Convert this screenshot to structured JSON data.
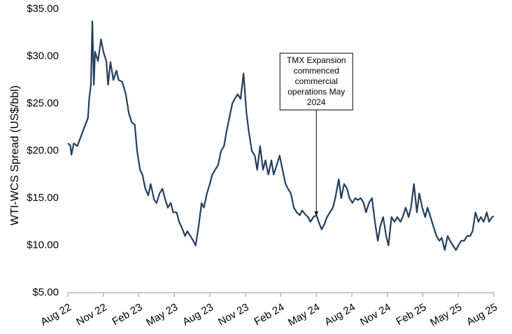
{
  "chart_data": {
    "type": "line",
    "y_label": "WTI-WCS Spread (US$/bbl)",
    "color": "#243f5e",
    "x": [
      0,
      0.2,
      0.3,
      0.5,
      0.8,
      1.1,
      1.4,
      1.7,
      1.8,
      1.95,
      2.07,
      2.2,
      2.3,
      2.55,
      2.8,
      3.0,
      3.25,
      3.4,
      3.6,
      3.85,
      4.1,
      4.3,
      4.6,
      4.9,
      5.15,
      5.4,
      5.65,
      5.85,
      6.1,
      6.3,
      6.55,
      6.8,
      7.0,
      7.3,
      7.5,
      7.75,
      8.0,
      8.2,
      8.45,
      8.7,
      8.9,
      9.2,
      9.4,
      9.6,
      9.9,
      10.1,
      10.35,
      10.6,
      10.8,
      11.05,
      11.3,
      11.5,
      11.75,
      12.0,
      12.2,
      12.45,
      12.7,
      12.95,
      13.2,
      13.4,
      13.65,
      13.9,
      14.1,
      14.35,
      14.6,
      14.85,
      15.1,
      15.3,
      15.55,
      15.8,
      16.0,
      16.25,
      16.5,
      16.7,
      16.95,
      17.2,
      17.4,
      17.65,
      17.9,
      18.15,
      18.4,
      18.6,
      18.85,
      19.1,
      19.35,
      19.6,
      19.8,
      20.05,
      20.3,
      20.5,
      20.75,
      21.0,
      21.2,
      21.45,
      21.7,
      21.9,
      22.15,
      22.4,
      22.6,
      22.9,
      23.1,
      23.35,
      23.6,
      23.8,
      24.05,
      24.3,
      24.5,
      24.75,
      25.0,
      25.2,
      25.45,
      25.7,
      25.95,
      26.2,
      26.4,
      26.65,
      26.9,
      27.1,
      27.35,
      27.6,
      27.85,
      28.1,
      28.3,
      28.55,
      28.8,
      29.0,
      29.25,
      29.5,
      29.7,
      29.95,
      30.2,
      30.4,
      30.65,
      30.9,
      31.15,
      31.4,
      31.6,
      31.85,
      32.1,
      32.3,
      32.55,
      32.8,
      33.0,
      33.25,
      33.5,
      33.75,
      34.0,
      34.2,
      34.45,
      34.7,
      34.9,
      35.15,
      35.4,
      35.6,
      35.85,
      36.0
    ],
    "values": [
      20.8,
      20.6,
      19.6,
      20.8,
      20.5,
      21.5,
      22.5,
      23.5,
      25.5,
      27,
      33.7,
      27,
      30.5,
      29.5,
      31.8,
      30.5,
      29.5,
      27,
      29.4,
      27.5,
      28.5,
      27.5,
      27.3,
      26,
      24,
      23,
      22.8,
      20,
      18,
      17.5,
      16,
      15.3,
      16.5,
      14.8,
      14.5,
      15.5,
      16,
      15,
      14,
      14.5,
      13.5,
      13.5,
      12.5,
      12,
      11,
      11.5,
      11,
      10.5,
      10,
      12,
      14.5,
      14,
      15.5,
      16.5,
      17.5,
      18,
      18.5,
      20,
      20.5,
      22,
      23.5,
      25,
      25.5,
      26,
      25.5,
      28.2,
      24,
      22,
      20,
      19.5,
      18,
      20.5,
      18,
      19,
      17.5,
      19,
      17.5,
      18.5,
      19.5,
      18,
      16.5,
      16,
      15.5,
      14,
      13.5,
      13.2,
      13.7,
      13.3,
      13,
      12.5,
      13,
      13.2,
      12.5,
      11.7,
      12.3,
      13,
      13.5,
      14,
      15,
      17,
      15,
      16.5,
      16,
      15,
      14.5,
      15,
      14.8,
      15,
      14.5,
      13.5,
      14.5,
      15,
      12.5,
      10.5,
      12,
      13,
      11,
      10,
      13,
      12.5,
      13,
      12.5,
      13,
      14,
      13,
      14,
      16.5,
      13.5,
      15.5,
      14,
      13,
      14,
      13,
      12,
      11,
      10.5,
      10.8,
      9.5,
      11,
      10.5,
      10,
      9.5,
      10,
      10.5,
      10.5,
      11,
      11,
      11.5,
      13.5,
      12.5,
      13,
      12.5,
      13.5,
      12.5,
      13,
      13.1
    ],
    "xlim": [
      0,
      36
    ],
    "xticks": [
      {
        "value": 0,
        "label": "Aug 22"
      },
      {
        "value": 3,
        "label": "Nov 22"
      },
      {
        "value": 6,
        "label": "Feb 23"
      },
      {
        "value": 9,
        "label": "May 23"
      },
      {
        "value": 12,
        "label": "Aug 23"
      },
      {
        "value": 15,
        "label": "Nov 23"
      },
      {
        "value": 18,
        "label": "Feb 24"
      },
      {
        "value": 21,
        "label": "May 24"
      },
      {
        "value": 24,
        "label": "Aug 24"
      },
      {
        "value": 27,
        "label": "Nov 24"
      },
      {
        "value": 30,
        "label": "Feb 25"
      },
      {
        "value": 33,
        "label": "May 25"
      },
      {
        "value": 36,
        "label": "Aug 25"
      }
    ],
    "ylim": [
      5,
      35
    ],
    "yticks": [
      {
        "value": 5,
        "label": "$5.00"
      },
      {
        "value": 10,
        "label": "$10.00"
      },
      {
        "value": 15,
        "label": "$15.00"
      },
      {
        "value": 20,
        "label": "$20.00"
      },
      {
        "value": 25,
        "label": "$25.00"
      },
      {
        "value": 30,
        "label": "$30.00"
      },
      {
        "value": 35,
        "label": "$35.00"
      }
    ],
    "annotation": {
      "lines": [
        "TMX Expansion",
        "commenced",
        "commercial",
        "operations May",
        "2024"
      ],
      "x": 21,
      "y": 13
    }
  }
}
